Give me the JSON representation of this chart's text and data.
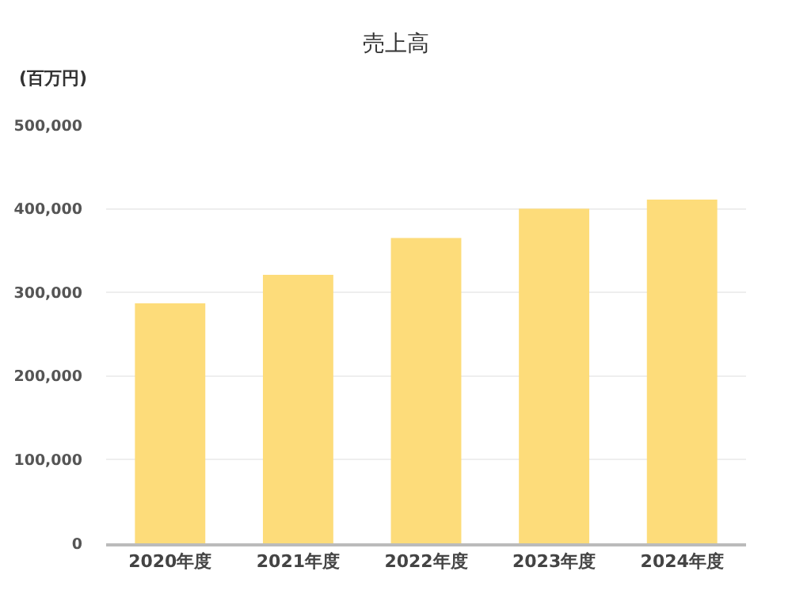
{
  "chart_data": {
    "type": "bar",
    "title": "売上高",
    "ylabel": "(百万円)",
    "categories": [
      "2020年度",
      "2021年度",
      "2022年度",
      "2023年度",
      "2024年度"
    ],
    "values": [
      287000,
      321000,
      365000,
      400000,
      411000
    ],
    "color": "#fddc7a",
    "ylim": [
      0,
      500000
    ],
    "yticks": [
      {
        "value": 0,
        "label": "0"
      },
      {
        "value": 100000,
        "label": "100,000"
      },
      {
        "value": 200000,
        "label": "200,000"
      },
      {
        "value": 300000,
        "label": "300,000"
      },
      {
        "value": 400000,
        "label": "400,000"
      },
      {
        "value": 500000,
        "label": "500,000"
      }
    ],
    "grid": "y"
  }
}
